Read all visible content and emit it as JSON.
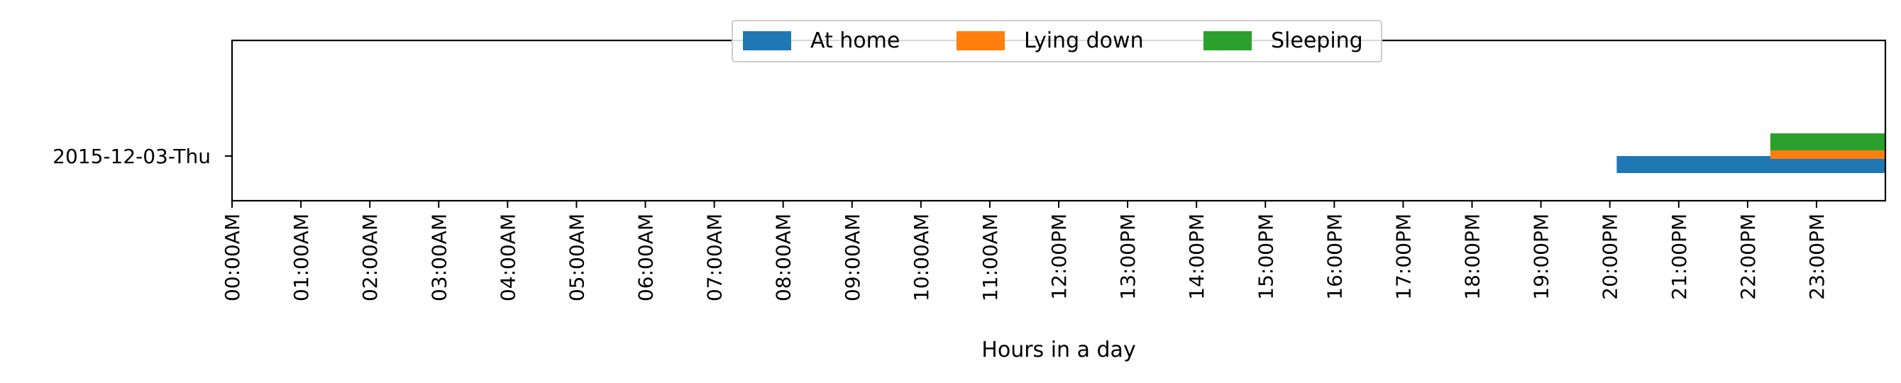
{
  "chart_data": {
    "type": "timeline",
    "xlabel": "Hours in a day",
    "ylabel": "",
    "xlim": [
      0,
      24
    ],
    "x_tick_labels": [
      "00:00AM",
      "01:00AM",
      "02:00AM",
      "03:00AM",
      "04:00AM",
      "05:00AM",
      "06:00AM",
      "07:00AM",
      "08:00AM",
      "09:00AM",
      "10:00AM",
      "11:00AM",
      "12:00PM",
      "13:00PM",
      "14:00PM",
      "15:00PM",
      "16:00PM",
      "17:00PM",
      "18:00PM",
      "19:00PM",
      "20:00PM",
      "21:00PM",
      "22:00PM",
      "23:00PM"
    ],
    "categories": [
      "2015-12-03-Thu"
    ],
    "legend_position": "top-center",
    "grid": false,
    "series": [
      {
        "name": "At home",
        "color": "#1f77b4",
        "intervals": [
          {
            "category": "2015-12-03-Thu",
            "start": 20.1,
            "end": 24.0
          }
        ]
      },
      {
        "name": "Lying down",
        "color": "#ff7f0e",
        "intervals": [
          {
            "category": "2015-12-03-Thu",
            "start": 22.33,
            "end": 24.0
          }
        ]
      },
      {
        "name": "Sleeping",
        "color": "#2ca02c",
        "intervals": [
          {
            "category": "2015-12-03-Thu",
            "start": 22.33,
            "end": 24.0
          }
        ]
      }
    ]
  }
}
